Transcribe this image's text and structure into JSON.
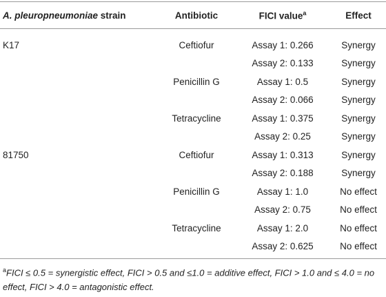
{
  "table": {
    "header": [
      {
        "italic": "A. pleuropneumoniae",
        "text": " strain"
      },
      {
        "text": "Antibiotic"
      },
      {
        "text": "FICI value",
        "sup": "a"
      },
      {
        "text": "Effect"
      }
    ],
    "rows": [
      {
        "strain": "K17",
        "antibiotic": "Ceftiofur",
        "fici": "Assay 1: 0.266",
        "effect": "Synergy"
      },
      {
        "fici": "Assay 2: 0.133",
        "effect": "Synergy"
      },
      {
        "antibiotic": "Penicillin G",
        "fici": "Assay 1: 0.5",
        "effect": "Synergy"
      },
      {
        "fici": "Assay 2: 0.066",
        "effect": "Synergy"
      },
      {
        "antibiotic": "Tetracycline",
        "fici": "Assay 1: 0.375",
        "effect": "Synergy"
      },
      {
        "fici": "Assay 2: 0.25",
        "effect": "Synergy"
      },
      {
        "strain": "81750",
        "antibiotic": "Ceftiofur",
        "fici": "Assay 1: 0.313",
        "effect": "Synergy"
      },
      {
        "fici": "Assay 2: 0.188",
        "effect": "Synergy"
      },
      {
        "antibiotic": "Penicillin G",
        "fici": "Assay 1: 1.0",
        "effect": "No effect"
      },
      {
        "fici": "Assay 2: 0.75",
        "effect": "No effect"
      },
      {
        "antibiotic": "Tetracycline",
        "fici": "Assay 1: 2.0",
        "effect": "No effect"
      },
      {
        "fici": "Assay 2: 0.625",
        "effect": "No effect"
      }
    ],
    "footnote": {
      "sup": "a",
      "text": "FICI ≤ 0.5 = synergistic effect, FICI > 0.5 and ≤1.0 = additive effect, FICI > 1.0 and ≤ 4.0 = no effect, FICI > 4.0 = antagonistic effect."
    }
  }
}
